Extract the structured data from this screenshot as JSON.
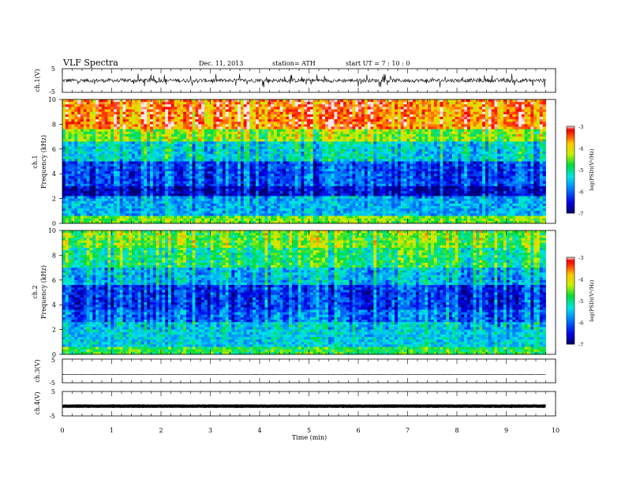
{
  "header": {
    "title": "VLF  Spectra",
    "date": "Dec. 11, 2013",
    "station": "station= ATH",
    "start": "start  UT  =    7  : 10 : 0"
  },
  "chart_data": [
    {
      "type": "line",
      "panel": "ch1-waveform",
      "ylabel": "ch.1(V)",
      "ylim": [
        -5,
        5
      ],
      "yticks": [
        "5",
        "-5"
      ],
      "baseline": 0,
      "description_level": "noisy broadband signal around 0 V, spikes up to about ±3 V"
    },
    {
      "type": "heatmap",
      "panel": "ch1-spectrogram",
      "ylabel": "ch.1\nFrequency  (kHz)",
      "ylim": [
        0,
        10
      ],
      "yticks": [
        "0",
        "2",
        "4",
        "6",
        "8",
        "10"
      ],
      "bands_logpsd": [
        {
          "from": 0.0,
          "to": 0.6,
          "level": -4.5
        },
        {
          "from": 0.6,
          "to": 2.2,
          "level": -5.6
        },
        {
          "from": 2.2,
          "to": 3.0,
          "level": -6.6
        },
        {
          "from": 3.0,
          "to": 5.0,
          "level": -6.1
        },
        {
          "from": 5.0,
          "to": 6.5,
          "level": -5.3
        },
        {
          "from": 6.5,
          "to": 7.5,
          "level": -4.4
        },
        {
          "from": 7.5,
          "to": 10.0,
          "level": -3.5
        }
      ],
      "colorbar": {
        "label": "log(PSD)(V²/Hz)",
        "min": -7,
        "max": -3,
        "ticks": [
          "-3",
          "-4",
          "-5",
          "-6",
          "-7"
        ]
      }
    },
    {
      "type": "heatmap",
      "panel": "ch2-spectrogram",
      "ylabel": "ch.2\nFrequency  (kHz)",
      "ylim": [
        0,
        10
      ],
      "yticks": [
        "0",
        "2",
        "4",
        "6",
        "8",
        "10"
      ],
      "bands_logpsd": [
        {
          "from": 0.0,
          "to": 0.6,
          "level": -4.8
        },
        {
          "from": 0.6,
          "to": 2.5,
          "level": -5.4
        },
        {
          "from": 2.5,
          "to": 3.5,
          "level": -5.9
        },
        {
          "from": 3.5,
          "to": 5.5,
          "level": -6.2
        },
        {
          "from": 5.5,
          "to": 7.0,
          "level": -5.5
        },
        {
          "from": 7.0,
          "to": 8.5,
          "level": -4.9
        },
        {
          "from": 8.5,
          "to": 10.0,
          "level": -4.5
        }
      ],
      "colorbar": {
        "label": "log(PSD)(V²/Hz)",
        "min": -7,
        "max": -3,
        "ticks": [
          "-3",
          "-4",
          "-5",
          "-6",
          "-7"
        ]
      }
    },
    {
      "type": "line",
      "panel": "ch3-waveform",
      "ylabel": "ch.3(V)",
      "ylim": [
        -5,
        5
      ],
      "yticks": [
        "5",
        "-5"
      ],
      "baseline": -1.5,
      "description_level": "flat trace near -1.5 V"
    },
    {
      "type": "line",
      "panel": "ch4-waveform",
      "ylabel": "ch.4(V)",
      "ylim": [
        -5,
        5
      ],
      "yticks": [
        "5",
        "-5"
      ],
      "baseline": -1.0,
      "description_level": "thick flat trace near -1 V"
    }
  ],
  "x_axis": {
    "label": "Time  (min)",
    "range": [
      0,
      10
    ],
    "ticks": [
      "0",
      "1",
      "2",
      "3",
      "4",
      "5",
      "6",
      "7",
      "8",
      "9",
      "10"
    ],
    "data_end": 9.8
  }
}
